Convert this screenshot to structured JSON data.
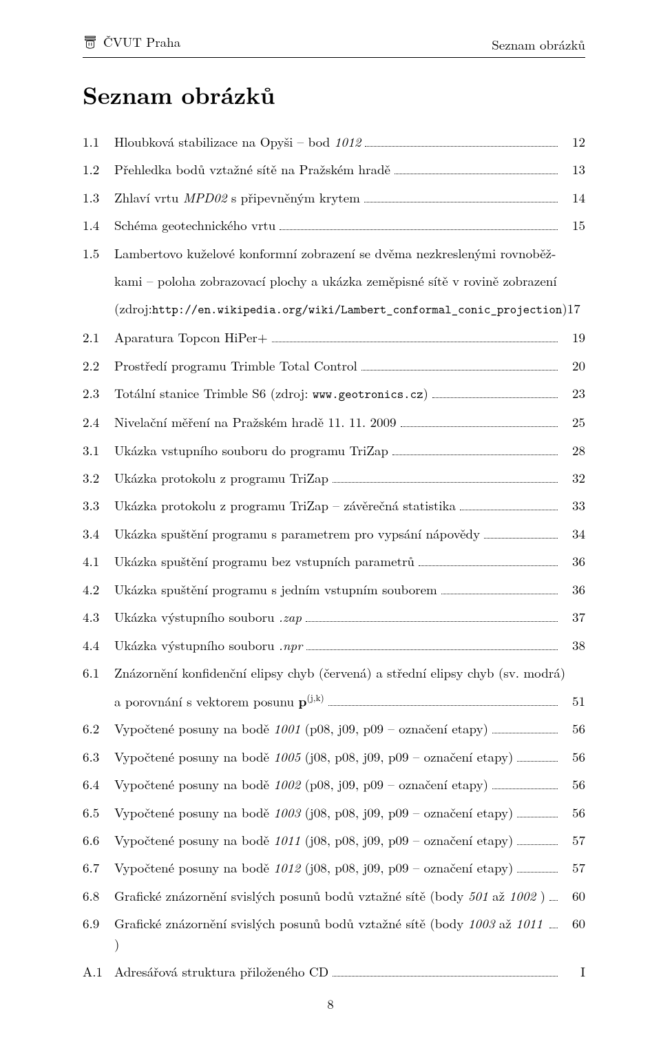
{
  "header": {
    "left": "ČVUT Praha",
    "right": "Seznam obrázků"
  },
  "title": "Seznam obrázků",
  "entries": [
    {
      "num": "1.1",
      "lines": [
        {
          "pre": "Hloubková stabilizace na Opyši – bod ",
          "it": "1012"
        }
      ],
      "page": "12"
    },
    {
      "num": "1.2",
      "lines": [
        {
          "pre": "Přehledka bodů vztažné sítě na Pražském hradě"
        }
      ],
      "page": "13"
    },
    {
      "num": "1.3",
      "lines": [
        {
          "pre": "Zhlaví vrtu ",
          "it": "MPD02",
          "post": " s připevněným krytem"
        }
      ],
      "page": "14"
    },
    {
      "num": "1.4",
      "lines": [
        {
          "pre": "Schéma geotechnického vrtu"
        }
      ],
      "page": "15"
    },
    {
      "num": "1.5",
      "multi": true,
      "l1": "Lambertovo kuželové konformní zobrazení se dvěma nezkreslenými rovnoběž-",
      "l2": "kami – poloha zobrazovací plochy a ukázka zeměpisné sítě v rovině zobrazení",
      "l3a": "(zdroj: ",
      "l3mono": "http://en.wikipedia.org/wiki/Lambert_conformal_conic_projection",
      "l3b": ")",
      "page": "17"
    },
    {
      "num": "2.1",
      "lines": [
        {
          "pre": "Aparatura Topcon HiPer+"
        }
      ],
      "page": "19"
    },
    {
      "num": "2.2",
      "lines": [
        {
          "pre": "Prostředí programu Trimble Total Control"
        }
      ],
      "page": "20"
    },
    {
      "num": "2.3",
      "lines": [
        {
          "pre": "Totální stanice Trimble S6 (zdroj: ",
          "mono": "www.geotronics.cz",
          "post": ")"
        }
      ],
      "page": "23"
    },
    {
      "num": "2.4",
      "lines": [
        {
          "pre": "Nivelační měření na Pražském hradě 11. 11. 2009"
        }
      ],
      "page": "25"
    },
    {
      "num": "3.1",
      "lines": [
        {
          "pre": "Ukázka vstupního souboru do programu TriZap"
        }
      ],
      "page": "28"
    },
    {
      "num": "3.2",
      "lines": [
        {
          "pre": "Ukázka protokolu z programu TriZap"
        }
      ],
      "page": "32"
    },
    {
      "num": "3.3",
      "lines": [
        {
          "pre": "Ukázka protokolu z programu TriZap – závěrečná statistika"
        }
      ],
      "page": "33"
    },
    {
      "num": "3.4",
      "lines": [
        {
          "pre": "Ukázka spuštění programu s parametrem pro vypsání nápovědy"
        }
      ],
      "page": "34"
    },
    {
      "num": "4.1",
      "lines": [
        {
          "pre": "Ukázka spuštění programu bez vstupních parametrů"
        }
      ],
      "page": "36"
    },
    {
      "num": "4.2",
      "lines": [
        {
          "pre": "Ukázka spuštění programu s jedním vstupním souborem"
        }
      ],
      "page": "36"
    },
    {
      "num": "4.3",
      "lines": [
        {
          "pre": "Ukázka výstupního souboru ",
          "it": ".zap"
        }
      ],
      "page": "37"
    },
    {
      "num": "4.4",
      "lines": [
        {
          "pre": "Ukázka výstupního souboru ",
          "it": ".npr"
        }
      ],
      "page": "38"
    },
    {
      "num": "6.1",
      "multi61": true,
      "l1": "Znázornění konfidenční elipsy chyb (červená) a střední elipsy chyb (sv. modrá)",
      "l2a": "a porovnání s vektorem posunu ",
      "page": "51"
    },
    {
      "num": "6.2",
      "lines": [
        {
          "pre": "Vypočtené posuny na bodě ",
          "it": "1001",
          "post": " (p08, j09, p09 – označení etapy)"
        }
      ],
      "page": "56"
    },
    {
      "num": "6.3",
      "lines": [
        {
          "pre": "Vypočtené posuny na bodě ",
          "it": "1005",
          "post": " (j08, p08, j09, p09 – označení etapy)"
        }
      ],
      "page": "56"
    },
    {
      "num": "6.4",
      "lines": [
        {
          "pre": "Vypočtené posuny na bodě ",
          "it": "1002",
          "post": " (p08, j09, p09 – označení etapy)"
        }
      ],
      "page": "56"
    },
    {
      "num": "6.5",
      "lines": [
        {
          "pre": "Vypočtené posuny na bodě ",
          "it": "1003",
          "post": " (j08, p08, j09, p09 – označení etapy)"
        }
      ],
      "page": "56"
    },
    {
      "num": "6.6",
      "lines": [
        {
          "pre": "Vypočtené posuny na bodě ",
          "it": "1011",
          "post": " (j08, p08, j09, p09 – označení etapy)"
        }
      ],
      "page": "57"
    },
    {
      "num": "6.7",
      "lines": [
        {
          "pre": "Vypočtené posuny na bodě ",
          "it": "1012",
          "post": " (j08, p08, j09, p09 – označení etapy)"
        }
      ],
      "page": "57"
    },
    {
      "num": "6.8",
      "lines": [
        {
          "pre": "Grafické znázornění svislých posunů bodů vztažné sítě (body ",
          "it": "501",
          "post": " až ",
          "it2": "1002",
          "post2": " )"
        }
      ],
      "page": "60"
    },
    {
      "num": "6.9",
      "lines": [
        {
          "pre": "Grafické znázornění svislých posunů bodů vztažné sítě (body ",
          "it": "1003",
          "post": " až ",
          "it2": "1011",
          "post2": " )"
        }
      ],
      "page": "60"
    },
    {
      "num": "A.1",
      "lines": [
        {
          "pre": "Adresářová struktura přiloženého CD"
        }
      ],
      "page": "I"
    }
  ],
  "page_number": "8"
}
